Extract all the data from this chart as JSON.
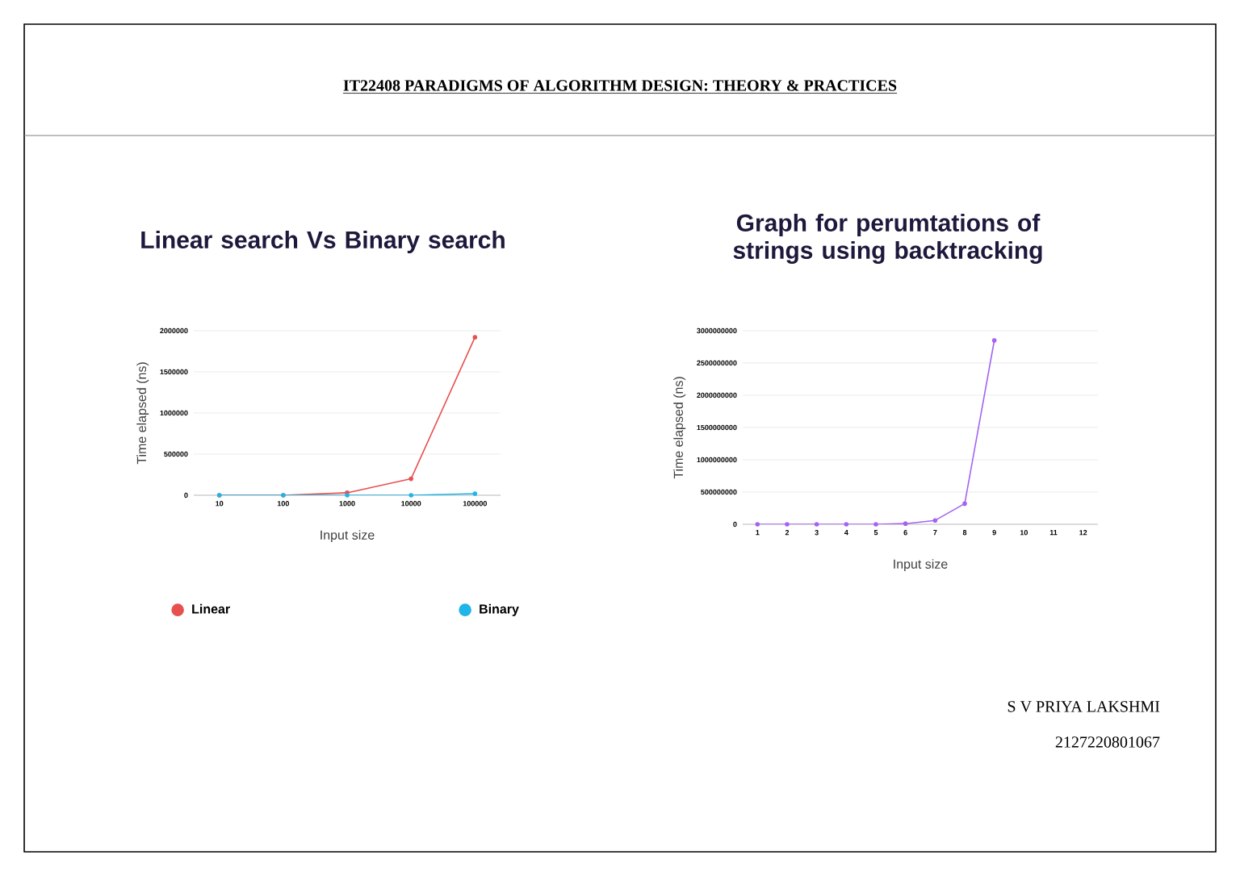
{
  "chart_data": [
    {
      "type": "line",
      "title": "Linear search Vs Binary search",
      "xlabel": "Input size",
      "ylabel": "Time elapsed (ns)",
      "categories": [
        "10",
        "100",
        "1000",
        "10000",
        "100000"
      ],
      "series": [
        {
          "name": "Linear",
          "color": "#e8504f",
          "values": [
            0,
            0,
            30000,
            200000,
            1920000
          ]
        },
        {
          "name": "Binary",
          "color": "#1fb5e8",
          "values": [
            0,
            0,
            0,
            0,
            20000
          ]
        }
      ],
      "ylim": [
        0,
        2000000
      ],
      "yticks": [
        0,
        500000,
        1000000,
        1500000,
        2000000
      ],
      "grid": "y",
      "legend": "bottom",
      "marker": "circle",
      "line_style": "solid",
      "annotations": [
        "IT22408 PARADIGMS OF ALGORITHM DESIGN: THEORY & PRACTICES"
      ]
    },
    {
      "type": "line",
      "title": "Graph for perumtations of strings using backtracking",
      "xlabel": "Input size",
      "ylabel": "Time elapsed (ns)",
      "series": [
        {
          "color": "#a463f2",
          "x": [
            1,
            2,
            3,
            4,
            5,
            6,
            7,
            8,
            9
          ],
          "values": [
            0,
            0,
            0,
            0,
            0,
            10000000,
            60000000,
            320000000,
            2850000000
          ]
        }
      ],
      "xlim": [
        0.5,
        12.5
      ],
      "xticks": [
        1,
        2,
        3,
        4,
        5,
        6,
        7,
        8,
        9,
        10,
        11,
        12
      ],
      "ylim": [
        0,
        3000000000
      ],
      "yticks": [
        0,
        500000000,
        1000000000,
        1500000000,
        2000000000,
        2500000000,
        3000000000
      ],
      "grid": "y",
      "marker": "circle",
      "line_style": "solid",
      "annotations": [
        "S V PRIYA LAKSHMI",
        "2127220801067"
      ]
    }
  ]
}
